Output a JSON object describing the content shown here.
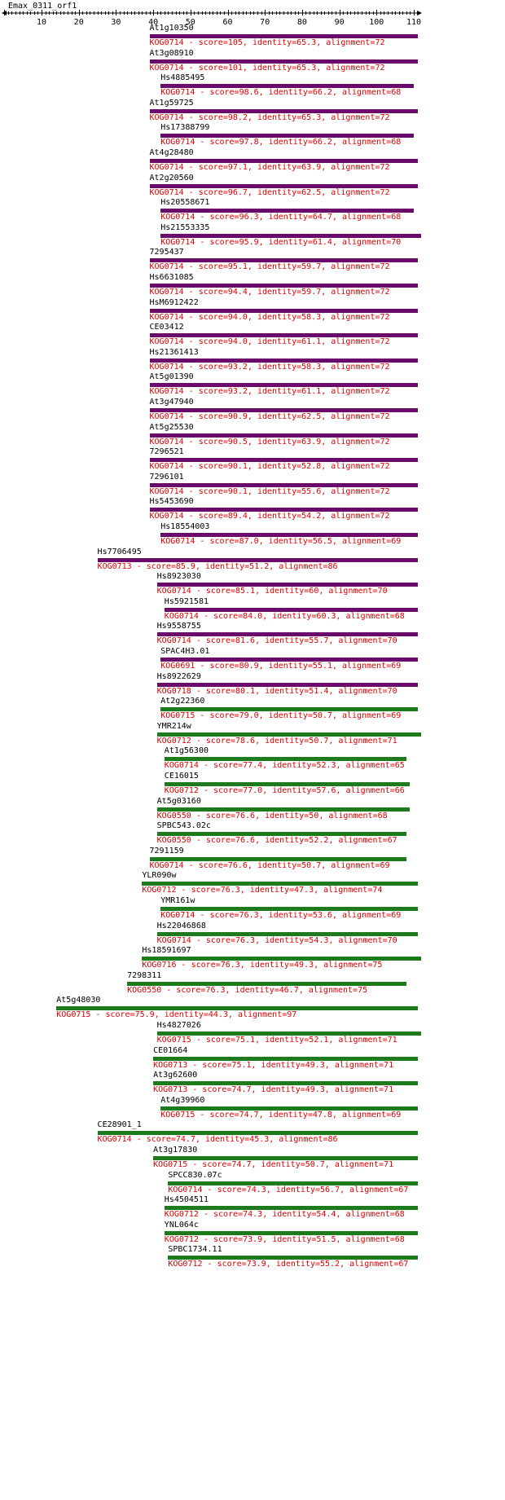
{
  "sequence_name": "Emax_0311_orf1",
  "axis": {
    "min": 0,
    "max": 111,
    "labels": [
      10,
      20,
      30,
      40,
      50,
      60,
      70,
      80,
      90,
      100,
      110
    ]
  },
  "colors": {
    "purple": "#6a0a6a",
    "green": "#1d7a1d",
    "desc": "#dd0000",
    "name": "#000000",
    "axis": "#000000"
  },
  "hits": [
    {
      "name": "At1g10350",
      "desc": "KOG0714 - score=105, identity=65.3, alignment=72",
      "start": 39,
      "end": 111,
      "color": "purple"
    },
    {
      "name": "At3g08910",
      "desc": "KOG0714 - score=101, identity=65.3, alignment=72",
      "start": 39,
      "end": 111,
      "color": "purple"
    },
    {
      "name": "Hs4885495",
      "desc": "KOG0714 - score=98.6, identity=66.2, alignment=68",
      "start": 42,
      "end": 110,
      "color": "purple"
    },
    {
      "name": "At1g59725",
      "desc": "KOG0714 - score=98.2, identity=65.3, alignment=72",
      "start": 39,
      "end": 111,
      "color": "purple"
    },
    {
      "name": "Hs17388799",
      "desc": "KOG0714 - score=97.8, identity=66.2, alignment=68",
      "start": 42,
      "end": 110,
      "color": "purple"
    },
    {
      "name": "At4g28480",
      "desc": "KOG0714 - score=97.1, identity=63.9, alignment=72",
      "start": 39,
      "end": 111,
      "color": "purple"
    },
    {
      "name": "At2g20560",
      "desc": "KOG0714 - score=96.7, identity=62.5, alignment=72",
      "start": 39,
      "end": 111,
      "color": "purple"
    },
    {
      "name": "Hs20558671",
      "desc": "KOG0714 - score=96.3, identity=64.7, alignment=68",
      "start": 42,
      "end": 110,
      "color": "purple"
    },
    {
      "name": "Hs21553335",
      "desc": "KOG0714 - score=95.9, identity=61.4, alignment=70",
      "start": 42,
      "end": 112,
      "color": "purple"
    },
    {
      "name": "7295437",
      "desc": "KOG0714 - score=95.1, identity=59.7, alignment=72",
      "start": 39,
      "end": 111,
      "color": "purple"
    },
    {
      "name": "Hs6631085",
      "desc": "KOG0714 - score=94.4, identity=59.7, alignment=72",
      "start": 39,
      "end": 111,
      "color": "purple"
    },
    {
      "name": "HsM6912422",
      "desc": "KOG0714 - score=94.0, identity=58.3, alignment=72",
      "start": 39,
      "end": 111,
      "color": "purple"
    },
    {
      "name": "CE03412",
      "desc": "KOG0714 - score=94.0, identity=61.1, alignment=72",
      "start": 39,
      "end": 111,
      "color": "purple"
    },
    {
      "name": "Hs21361413",
      "desc": "KOG0714 - score=93.2, identity=58.3, alignment=72",
      "start": 39,
      "end": 111,
      "color": "purple"
    },
    {
      "name": "At5g01390",
      "desc": "KOG0714 - score=93.2, identity=61.1, alignment=72",
      "start": 39,
      "end": 111,
      "color": "purple"
    },
    {
      "name": "At3g47940",
      "desc": "KOG0714 - score=90.9, identity=62.5, alignment=72",
      "start": 39,
      "end": 111,
      "color": "purple"
    },
    {
      "name": "At5g25530",
      "desc": "KOG0714 - score=90.5, identity=63.9, alignment=72",
      "start": 39,
      "end": 111,
      "color": "purple"
    },
    {
      "name": "7296521",
      "desc": "KOG0714 - score=90.1, identity=52.8, alignment=72",
      "start": 39,
      "end": 111,
      "color": "purple"
    },
    {
      "name": "7296101",
      "desc": "KOG0714 - score=90.1, identity=55.6, alignment=72",
      "start": 39,
      "end": 111,
      "color": "purple"
    },
    {
      "name": "Hs5453690",
      "desc": "KOG0714 - score=89.4, identity=54.2, alignment=72",
      "start": 39,
      "end": 111,
      "color": "purple"
    },
    {
      "name": "Hs18554003",
      "desc": "KOG0714 - score=87.0, identity=56.5, alignment=69",
      "start": 42,
      "end": 111,
      "color": "purple"
    },
    {
      "name": "Hs7706495",
      "desc": "KOG0713 - score=85.9, identity=51.2, alignment=86",
      "start": 25,
      "end": 111,
      "color": "purple"
    },
    {
      "name": "Hs8923030",
      "desc": "KOG0714 - score=85.1, identity=60, alignment=70",
      "start": 41,
      "end": 111,
      "color": "purple"
    },
    {
      "name": "Hs5921581",
      "desc": "KOG0714 - score=84.0, identity=60.3, alignment=68",
      "start": 43,
      "end": 111,
      "color": "purple"
    },
    {
      "name": "Hs9558755",
      "desc": "KOG0714 - score=81.6, identity=55.7, alignment=70",
      "start": 41,
      "end": 111,
      "color": "purple"
    },
    {
      "name": "SPAC4H3.01",
      "desc": "KOG0691 - score=80.9, identity=55.1, alignment=69",
      "start": 42,
      "end": 111,
      "color": "purple"
    },
    {
      "name": "Hs8922629",
      "desc": "KOG0718 - score=80.1, identity=51.4, alignment=70",
      "start": 41,
      "end": 111,
      "color": "purple"
    },
    {
      "name": "At2g22360",
      "desc": "KOG0715 - score=79.0, identity=50.7, alignment=69",
      "start": 42,
      "end": 111,
      "color": "green"
    },
    {
      "name": "YMR214w",
      "desc": "KOG0712 - score=78.6, identity=50.7, alignment=71",
      "start": 41,
      "end": 112,
      "color": "green"
    },
    {
      "name": "At1g56300",
      "desc": "KOG0714 - score=77.4, identity=52.3, alignment=65",
      "start": 43,
      "end": 108,
      "color": "green"
    },
    {
      "name": "CE16015",
      "desc": "KOG0712 - score=77.0, identity=57.6, alignment=66",
      "start": 43,
      "end": 109,
      "color": "green"
    },
    {
      "name": "At5g03160",
      "desc": "KOG0550 - score=76.6, identity=50, alignment=68",
      "start": 41,
      "end": 109,
      "color": "green"
    },
    {
      "name": "SPBC543.02c",
      "desc": "KOG0550 - score=76.6, identity=52.2, alignment=67",
      "start": 41,
      "end": 108,
      "color": "green"
    },
    {
      "name": "7291159",
      "desc": "KOG0714 - score=76.6, identity=50.7, alignment=69",
      "start": 39,
      "end": 108,
      "color": "green"
    },
    {
      "name": "YLR090w",
      "desc": "KOG0712 - score=76.3, identity=47.3, alignment=74",
      "start": 37,
      "end": 111,
      "color": "green"
    },
    {
      "name": "YMR161w",
      "desc": "KOG0714 - score=76.3, identity=53.6, alignment=69",
      "start": 42,
      "end": 111,
      "color": "green"
    },
    {
      "name": "Hs22046868",
      "desc": "KOG0714 - score=76.3, identity=54.3, alignment=70",
      "start": 41,
      "end": 111,
      "color": "green"
    },
    {
      "name": "Hs18591697",
      "desc": "KOG0716 - score=76.3, identity=49.3, alignment=75",
      "start": 37,
      "end": 112,
      "color": "green"
    },
    {
      "name": "7298311",
      "desc": "KOG0550 - score=76.3, identity=46.7, alignment=75",
      "start": 33,
      "end": 108,
      "color": "green"
    },
    {
      "name": "At5g48030",
      "desc": "KOG0715 - score=75.9, identity=44.3, alignment=97",
      "start": 14,
      "end": 111,
      "color": "green"
    },
    {
      "name": "Hs4827026",
      "desc": "KOG0715 - score=75.1, identity=52.1, alignment=71",
      "start": 41,
      "end": 112,
      "color": "green"
    },
    {
      "name": "CE01664",
      "desc": "KOG0713 - score=75.1, identity=49.3, alignment=71",
      "start": 40,
      "end": 111,
      "color": "green"
    },
    {
      "name": "At3g62600",
      "desc": "KOG0713 - score=74.7, identity=49.3, alignment=71",
      "start": 40,
      "end": 111,
      "color": "green"
    },
    {
      "name": "At4g39960",
      "desc": "KOG0715 - score=74.7, identity=47.8, alignment=69",
      "start": 42,
      "end": 111,
      "color": "green"
    },
    {
      "name": "CE28901_1",
      "desc": "KOG0714 - score=74.7, identity=45.3, alignment=86",
      "start": 25,
      "end": 111,
      "color": "green"
    },
    {
      "name": "At3g17830",
      "desc": "KOG0715 - score=74.7, identity=50.7, alignment=71",
      "start": 40,
      "end": 111,
      "color": "green"
    },
    {
      "name": "SPCC830.07c",
      "desc": "KOG0714 - score=74.3, identity=56.7, alignment=67",
      "start": 44,
      "end": 111,
      "color": "green"
    },
    {
      "name": "Hs4504511",
      "desc": "KOG0712 - score=74.3, identity=54.4, alignment=68",
      "start": 43,
      "end": 111,
      "color": "green"
    },
    {
      "name": "YNL064c",
      "desc": "KOG0712 - score=73.9, identity=51.5, alignment=68",
      "start": 43,
      "end": 111,
      "color": "green"
    },
    {
      "name": "SPBC1734.11",
      "desc": "KOG0712 - score=73.9, identity=55.2, alignment=67",
      "start": 44,
      "end": 111,
      "color": "green"
    }
  ]
}
